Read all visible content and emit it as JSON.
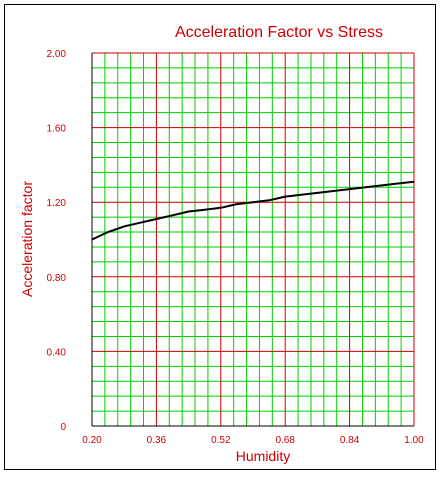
{
  "chart_data": {
    "type": "line",
    "title": "Acceleration Factor vs Stress",
    "xlabel": "Humidity",
    "ylabel": "Acceleration factor",
    "xlim": [
      0.2,
      1.0
    ],
    "ylim": [
      0,
      2.0
    ],
    "x_ticks": [
      "0.20",
      "0.36",
      "0.52",
      "0.68",
      "0.84",
      "1.00"
    ],
    "y_ticks": [
      "0",
      "0.40",
      "0.80",
      "1.20",
      "1.60",
      "2.00"
    ],
    "grid": true,
    "legend": "none",
    "colors": {
      "text": "#cc0000",
      "major_grid": "#cc0000",
      "minor_grid": "#00cc00",
      "curve": "#000000"
    },
    "series": [
      {
        "x": [
          0.2,
          0.24,
          0.28,
          0.32,
          0.36,
          0.4,
          0.44,
          0.48,
          0.52,
          0.56,
          0.6,
          0.64,
          0.68,
          0.72,
          0.76,
          0.8,
          0.84,
          0.88,
          0.92,
          0.96,
          1.0
        ],
        "values": [
          1.0,
          1.04,
          1.07,
          1.09,
          1.11,
          1.13,
          1.15,
          1.16,
          1.17,
          1.19,
          1.2,
          1.21,
          1.23,
          1.24,
          1.25,
          1.26,
          1.27,
          1.28,
          1.29,
          1.3,
          1.31
        ]
      }
    ]
  }
}
